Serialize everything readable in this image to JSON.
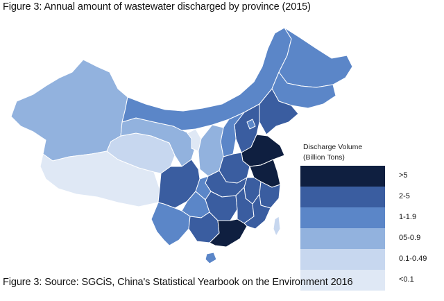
{
  "captions": {
    "top": "Figure 3: Annual amount of wastewater discharged by province (2015)",
    "bottom": "Figure 3: Source: SGCiS, China's Statistical Yearbook on the Environment 2016"
  },
  "legend": {
    "title_line1": "Discharge Volume",
    "title_line2": "(Billion Tons)",
    "classes": [
      {
        "label": ">5",
        "color": "#0f1f40"
      },
      {
        "label": "2-5",
        "color": "#3a5da0"
      },
      {
        "label": "1-1.9",
        "color": "#5b86c8"
      },
      {
        "label": "05-0.9",
        "color": "#92b2de"
      },
      {
        "label": "0.1-0.49",
        "color": "#c7d7ef"
      },
      {
        "label": "<0.1",
        "color": "#dfe8f5"
      }
    ]
  },
  "colors": {
    "border": "#ffffff",
    "background": "#ffffff"
  }
}
